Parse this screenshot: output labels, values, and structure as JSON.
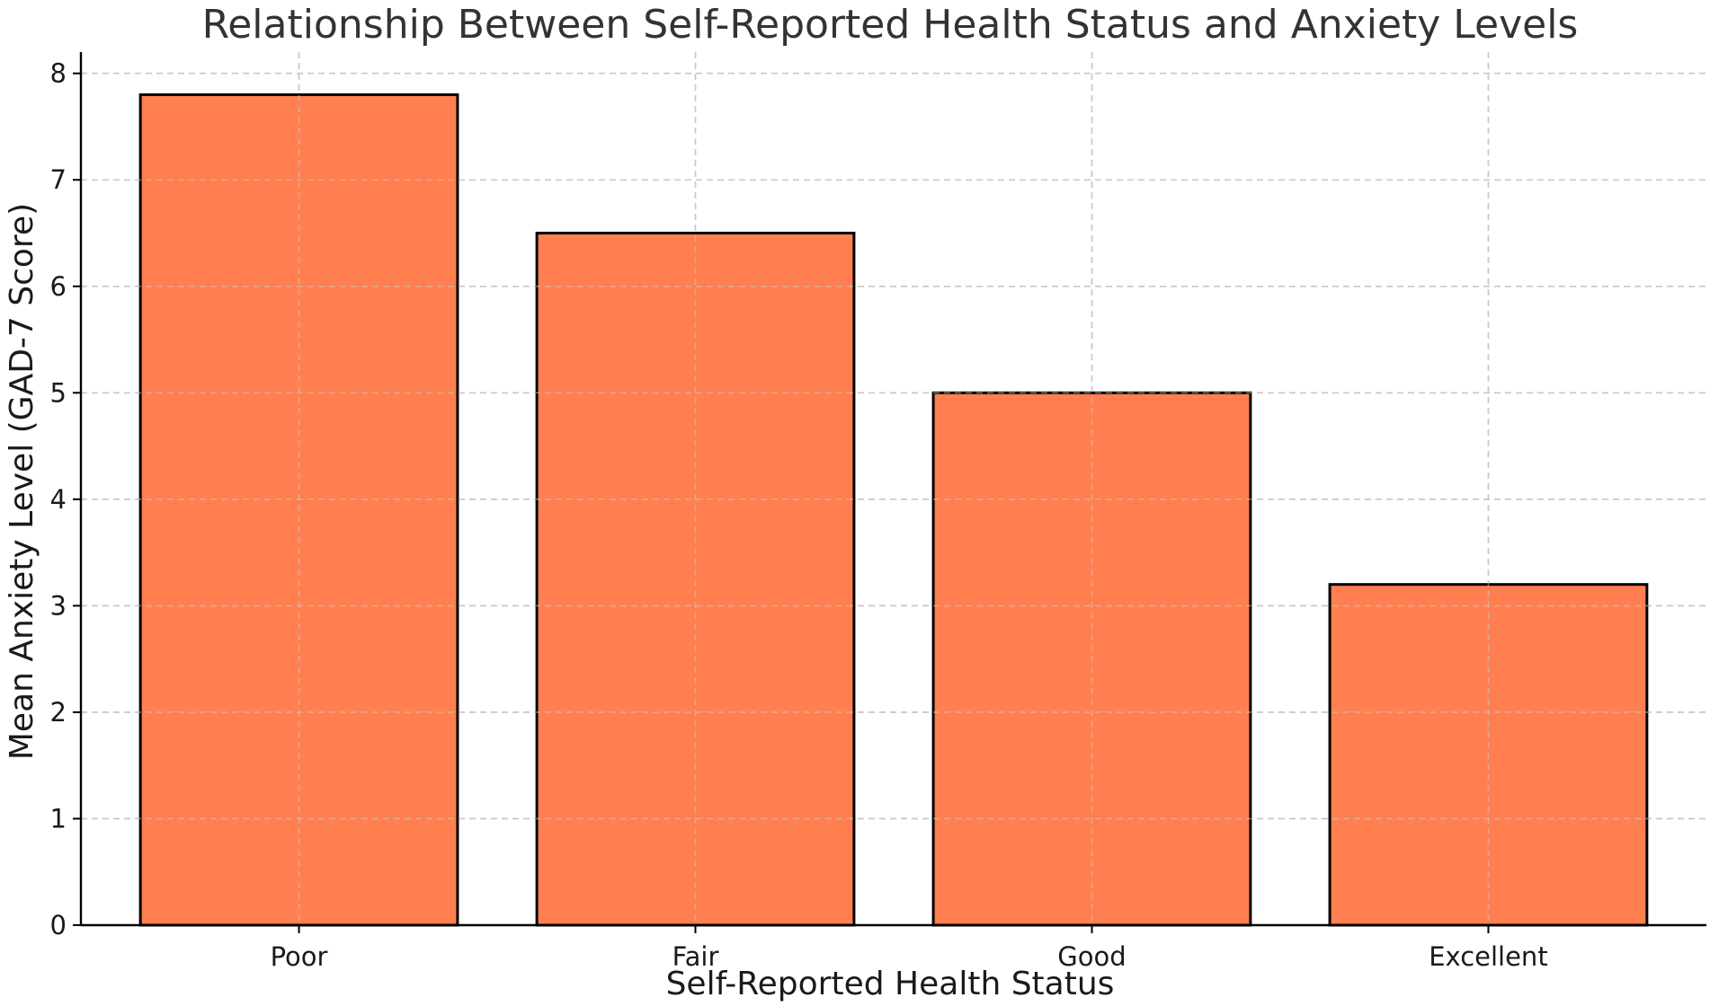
{
  "chart_data": {
    "type": "bar",
    "title": "Relationship Between Self-Reported Health Status and Anxiety Levels",
    "xlabel": "Self-Reported Health Status",
    "ylabel": "Mean Anxiety Level (GAD-7 Score)",
    "categories": [
      "Poor",
      "Fair",
      "Good",
      "Excellent"
    ],
    "values": [
      7.8,
      6.5,
      5.0,
      3.2
    ],
    "ylim": [
      0,
      8.2
    ],
    "yticks": [
      "0",
      "1",
      "2",
      "3",
      "4",
      "5",
      "6",
      "7",
      "8"
    ],
    "grid": true,
    "bar_color": "#FF7F50",
    "edge_color": "#000000"
  }
}
